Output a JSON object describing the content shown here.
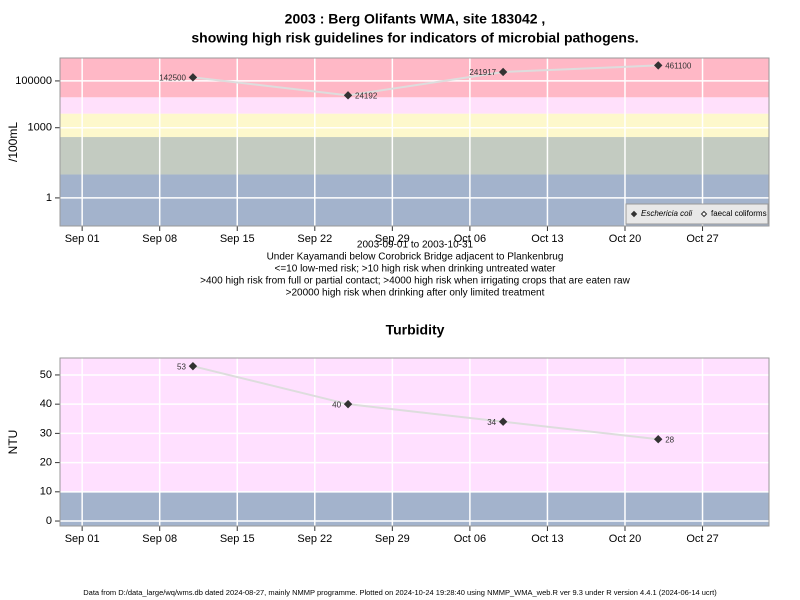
{
  "chart_data": [
    {
      "type": "line",
      "title": [
        "2003 : Berg Olifants WMA, site 183042 ,",
        "showing high risk guidelines for indicators of microbial pathogens."
      ],
      "ylabel": "/100mL",
      "x": [
        "2003-09-11",
        "2003-09-25",
        "2003-10-09",
        "2003-10-23"
      ],
      "series": [
        {
          "name": "Eschericia coli",
          "color": "#333333",
          "values": [
            142500,
            24192,
            241917,
            461100
          ]
        },
        {
          "name": "faecal coliforms",
          "color": "#333333",
          "values": [
            null,
            null,
            null,
            null
          ]
        }
      ],
      "line_color": "#dddddd",
      "log_y": true,
      "ylim": [
        0.063,
        955000
      ],
      "yticks": [
        1,
        1000,
        100000
      ],
      "xlim": [
        "2003-08-30",
        "2003-11-02"
      ],
      "xticks": [
        {
          "value": "2003-09-01",
          "label": "Sep 01"
        },
        {
          "value": "2003-09-08",
          "label": "Sep 08"
        },
        {
          "value": "2003-09-15",
          "label": "Sep 15"
        },
        {
          "value": "2003-09-22",
          "label": "Sep 22"
        },
        {
          "value": "2003-09-29",
          "label": "Sep 29"
        },
        {
          "value": "2003-10-06",
          "label": "Oct 06"
        },
        {
          "value": "2003-10-13",
          "label": "Oct 13"
        },
        {
          "value": "2003-10-20",
          "label": "Oct 20"
        },
        {
          "value": "2003-10-27",
          "label": "Oct 27"
        }
      ],
      "band_breaks": [
        10,
        400,
        4000,
        20000
      ],
      "band_colors": [
        "#a3b3cc",
        "#c3cbc1",
        "#fdf8cc",
        "#ffe0fb",
        "#ffb8c6"
      ],
      "grid": true,
      "legend": "bottom-right",
      "notes": [
        "2003-09-01 to 2003-10-31",
        "Under Kayamandi below Corobrick Bridge adjacent to Plankenbrug",
        "<=10 low-med risk; >10 high risk when drinking untreated water",
        ">400 high risk from full or partial contact; >4000 high risk when irrigating crops that are eaten raw",
        ">20000 high risk when drinking after only limited treatment"
      ]
    },
    {
      "type": "line",
      "title": [
        "Turbidity"
      ],
      "ylabel": "NTU",
      "x": [
        "2003-09-11",
        "2003-09-25",
        "2003-10-09",
        "2003-10-23"
      ],
      "values": [
        53,
        40,
        34,
        28
      ],
      "color": "#333333",
      "line_color": "#dddddd",
      "log_y": false,
      "ylim": [
        -1.7,
        55.8
      ],
      "yticks": [
        0,
        10,
        20,
        30,
        40,
        50
      ],
      "xlim": [
        "2003-08-30",
        "2003-11-02"
      ],
      "xticks": [
        {
          "value": "2003-09-01",
          "label": "Sep 01"
        },
        {
          "value": "2003-09-08",
          "label": "Sep 08"
        },
        {
          "value": "2003-09-15",
          "label": "Sep 15"
        },
        {
          "value": "2003-09-22",
          "label": "Sep 22"
        },
        {
          "value": "2003-09-29",
          "label": "Sep 29"
        },
        {
          "value": "2003-10-06",
          "label": "Oct 06"
        },
        {
          "value": "2003-10-13",
          "label": "Oct 13"
        },
        {
          "value": "2003-10-20",
          "label": "Oct 20"
        },
        {
          "value": "2003-10-27",
          "label": "Oct 27"
        }
      ],
      "band_breaks": [
        10
      ],
      "band_colors": [
        "#a3b3cc",
        "#ffe0ff"
      ],
      "grid": true
    }
  ],
  "footer": "Data from D:/data_large/wq/wms.db dated 2024-08-27, mainly NMMP programme. Plotted on 2024-10-24 19:28:40 using NMMP_WMA_web.R ver 9.3 under R version 4.4.1 (2024-06-14 ucrt)"
}
